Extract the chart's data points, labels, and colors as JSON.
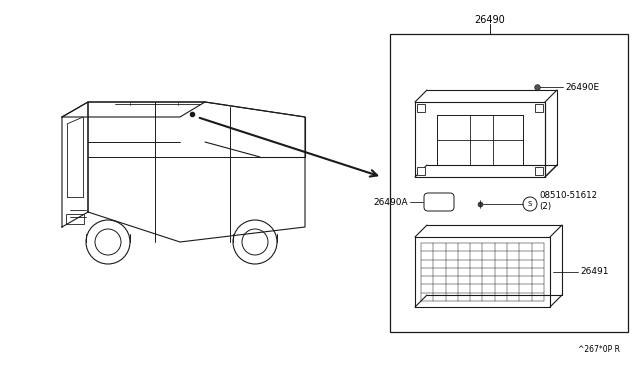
{
  "bg_color": "#ffffff",
  "line_color": "#1a1a1a",
  "fig_width": 6.4,
  "fig_height": 3.72,
  "part_box_label": "26490",
  "label_26490E": "26490E",
  "label_26490A": "26490A",
  "label_08510": "08510-51612\n(2)",
  "label_26491": "26491",
  "footer_text": "^267*0P R"
}
